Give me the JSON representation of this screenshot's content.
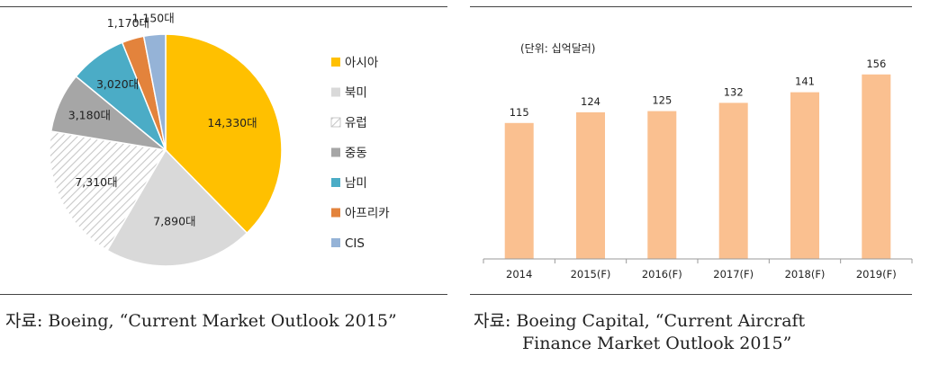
{
  "left": {
    "source": "자료: Boeing, “Current Market Outlook 2015”",
    "chart_data": {
      "type": "pie",
      "categories": [
        "아시아",
        "북미",
        "유럽",
        "중동",
        "남미",
        "아프리카",
        "CIS"
      ],
      "values": [
        14330,
        7890,
        7310,
        3180,
        3020,
        1170,
        1150
      ],
      "value_labels": [
        "14,330대",
        "7,890대",
        "7,310대",
        "3,180대",
        "3,020대",
        "1,170대",
        "1,150대"
      ],
      "colors": [
        "#FFC000",
        "#D9D9D9",
        "hatched-white-gray",
        "#A6A6A6",
        "#4BACC6",
        "#E3833C",
        "#95B3D7"
      ],
      "legend_position": "right"
    }
  },
  "right": {
    "source_line1": "자료: Boeing Capital, “Current Aircraft",
    "source_line2": "Finance Market Outlook 2015”",
    "chart_data": {
      "type": "bar",
      "unit_note": "(단위: 십억달러)",
      "categories": [
        "2014",
        "2015(F)",
        "2016(F)",
        "2017(F)",
        "2018(F)",
        "2019(F)"
      ],
      "values": [
        115,
        124,
        125,
        132,
        141,
        156
      ],
      "value_labels": [
        "115",
        "124",
        "125",
        "132",
        "141",
        "156"
      ],
      "bar_color": "#FAC090",
      "ylim": [
        0,
        165
      ],
      "grid": false
    }
  }
}
